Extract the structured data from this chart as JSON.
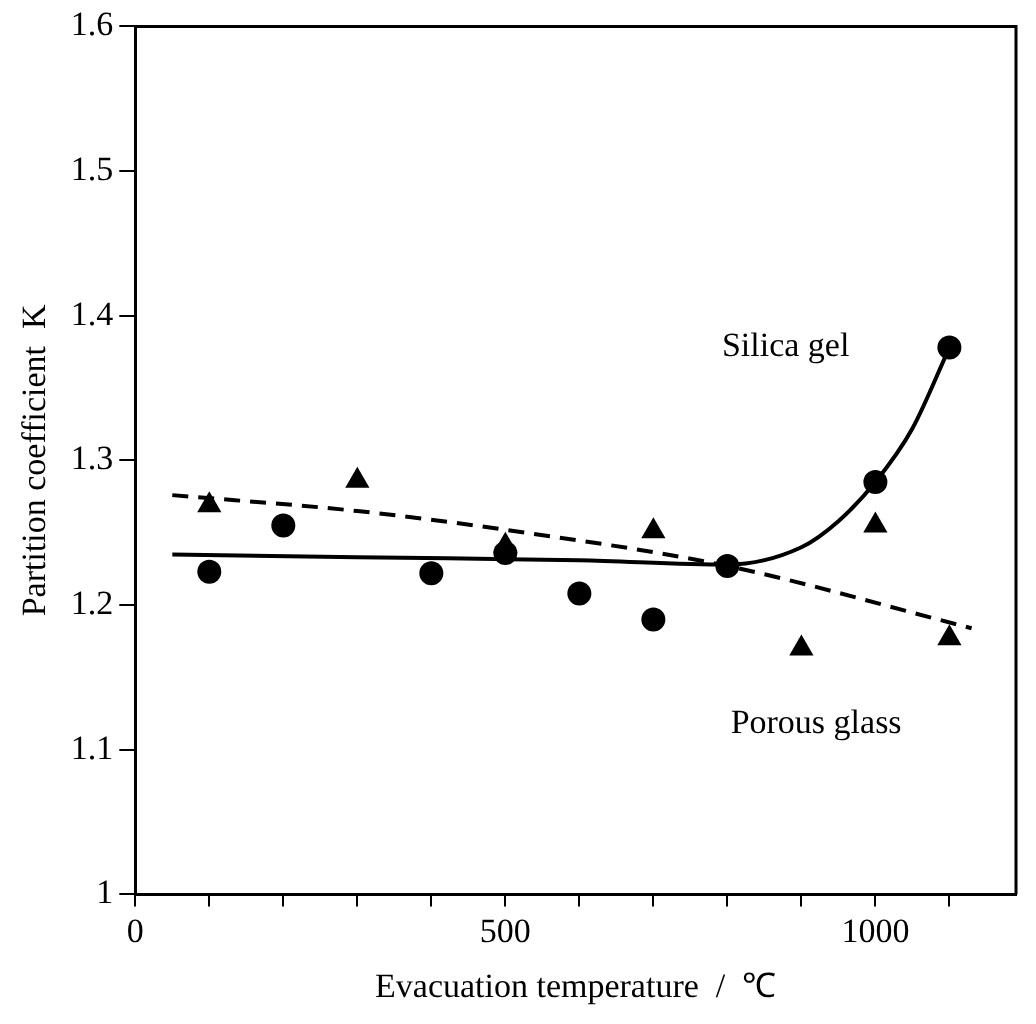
{
  "chart_data": {
    "type": "scatter",
    "xlabel": "Evacuation temperature  /  ℃",
    "ylabel": "Partition coefficient  K",
    "xlim": [
      0,
      1190
    ],
    "xticks": [
      0,
      {
        "value": 100,
        "label": null
      },
      {
        "value": 200,
        "label": null
      },
      {
        "value": 300,
        "label": null
      },
      {
        "value": 400,
        "label": null
      },
      500,
      {
        "value": 600,
        "label": null
      },
      {
        "value": 700,
        "label": null
      },
      {
        "value": 800,
        "label": null
      },
      {
        "value": 900,
        "label": null
      },
      1000,
      {
        "value": 1100,
        "label": null
      }
    ],
    "ylim": [
      1,
      1.6
    ],
    "yticks": [
      1,
      1.1,
      1.2,
      1.3,
      1.4,
      1.5,
      1.6
    ],
    "grid": false,
    "legend": false,
    "series": [
      {
        "marker": "circle",
        "color": "#000000",
        "x": [
          100,
          200,
          400,
          500,
          600,
          700,
          800,
          1000,
          1100
        ],
        "values": [
          1.223,
          1.255,
          1.222,
          1.236,
          1.208,
          1.19,
          1.227,
          1.285,
          1.378
        ]
      },
      {
        "marker": "triangle",
        "color": "#000000",
        "x": [
          100,
          300,
          500,
          700,
          900,
          1000,
          1100
        ],
        "values": [
          1.269,
          1.286,
          1.241,
          1.251,
          1.17,
          1.255,
          1.177
        ]
      },
      {
        "type": "line",
        "name": "Silica gel",
        "line_style": "solid",
        "marker": "none",
        "color": "#000000",
        "x": [
          50,
          300,
          600,
          800,
          900,
          950,
          1000,
          1050,
          1100
        ],
        "values": [
          1.235,
          1.233,
          1.231,
          1.228,
          1.24,
          1.258,
          1.285,
          1.322,
          1.378
        ]
      },
      {
        "type": "line",
        "name": "Porous glass",
        "line_style": "dashed",
        "marker": "none",
        "color": "#000000",
        "x": [
          50,
          300,
          500,
          800,
          1130
        ],
        "values": [
          1.276,
          1.265,
          1.252,
          1.227,
          1.184
        ]
      }
    ]
  }
}
